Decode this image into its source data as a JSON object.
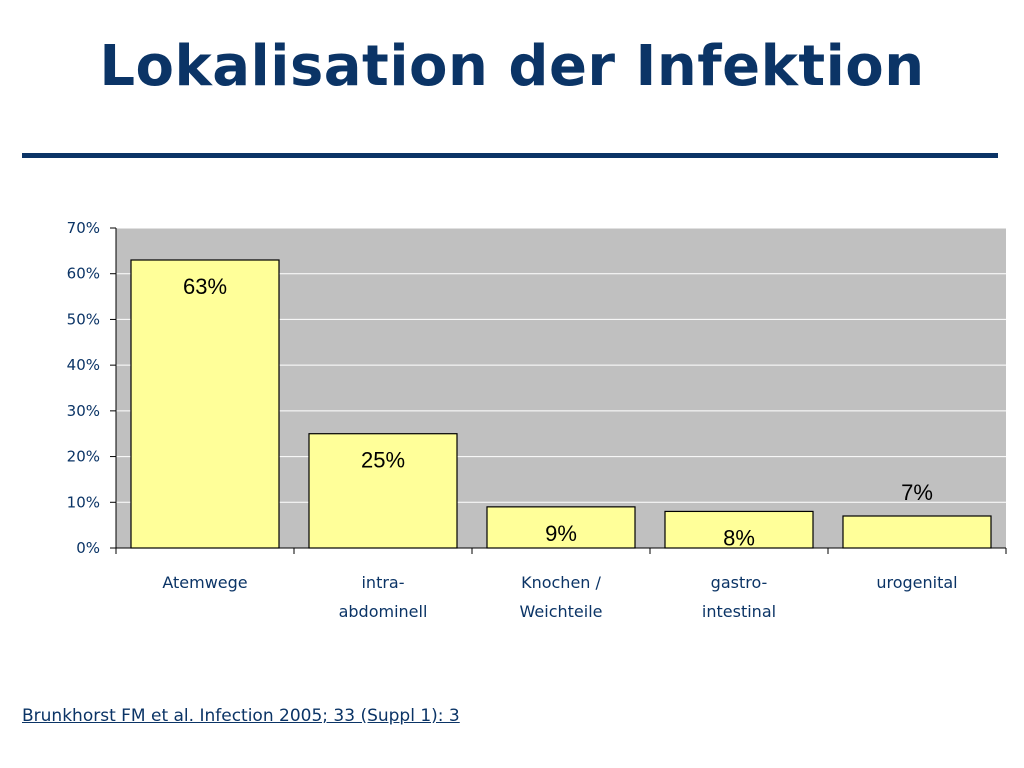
{
  "slide": {
    "title": "Lokalisation der Infektion",
    "citation": "Brunkhorst FM et al. Infection 2005; 33 (Suppl 1): 3"
  },
  "colors": {
    "title": "#0b3466",
    "plot_background": "#c0c0c0",
    "bar_fill": "#ffff99",
    "bar_stroke": "#000000",
    "gridline": "#ffffff"
  },
  "chart_data": {
    "type": "bar",
    "title": "",
    "xlabel": "",
    "ylabel": "",
    "categories": [
      [
        "Atemwege"
      ],
      [
        "intra-",
        "abdominell"
      ],
      [
        "Knochen /",
        "Weichteile"
      ],
      [
        "gastro-",
        "intestinal"
      ],
      [
        "urogenital"
      ]
    ],
    "values": [
      63,
      25,
      9,
      8,
      7
    ],
    "data_labels": [
      "63%",
      "25%",
      "9%",
      "8%",
      "7%"
    ],
    "yticks": [
      "0%",
      "10%",
      "20%",
      "30%",
      "40%",
      "50%",
      "60%",
      "70%"
    ],
    "ylim": [
      0,
      70
    ],
    "grid": true,
    "legend": "none"
  }
}
